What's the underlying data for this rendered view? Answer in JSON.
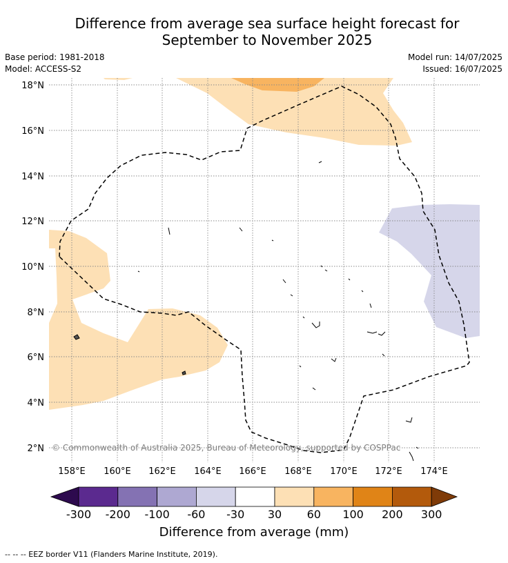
{
  "title_line1": "Difference from average sea surface height forecast for",
  "title_line2": "September to November 2025",
  "meta": {
    "base_period": "Base period: 1981-2018",
    "model": "Model: ACCESS-S2",
    "model_run": "Model run: 14/07/2025",
    "issued": "Issued: 16/07/2025"
  },
  "map": {
    "lon_labels": [
      "158°E",
      "160°E",
      "162°E",
      "164°E",
      "166°E",
      "168°E",
      "170°E",
      "172°E",
      "174°E"
    ],
    "lat_labels": [
      "18°N",
      "16°N",
      "14°N",
      "12°N",
      "10°N",
      "8°N",
      "6°N",
      "4°N",
      "2°N"
    ],
    "copyright": "© Commonwealth of Australia 2025, Bureau of Meteorology, supported by COSPPac"
  },
  "colorbar": {
    "colors": [
      "#2d0a4e",
      "#5b2a8f",
      "#8472b3",
      "#aea8d2",
      "#d6d6ea",
      "#ffffff",
      "#fde0b5",
      "#f8b460",
      "#e08417",
      "#b35a0c",
      "#7f3b08"
    ],
    "labels": [
      "-300",
      "-200",
      "-100",
      "-60",
      "-30",
      "30",
      "60",
      "100",
      "200",
      "300"
    ],
    "title": "Difference from average (mm)"
  },
  "footnote": "--  --  -- EEZ border V11 (Flanders Marine Institute, 2019)."
}
